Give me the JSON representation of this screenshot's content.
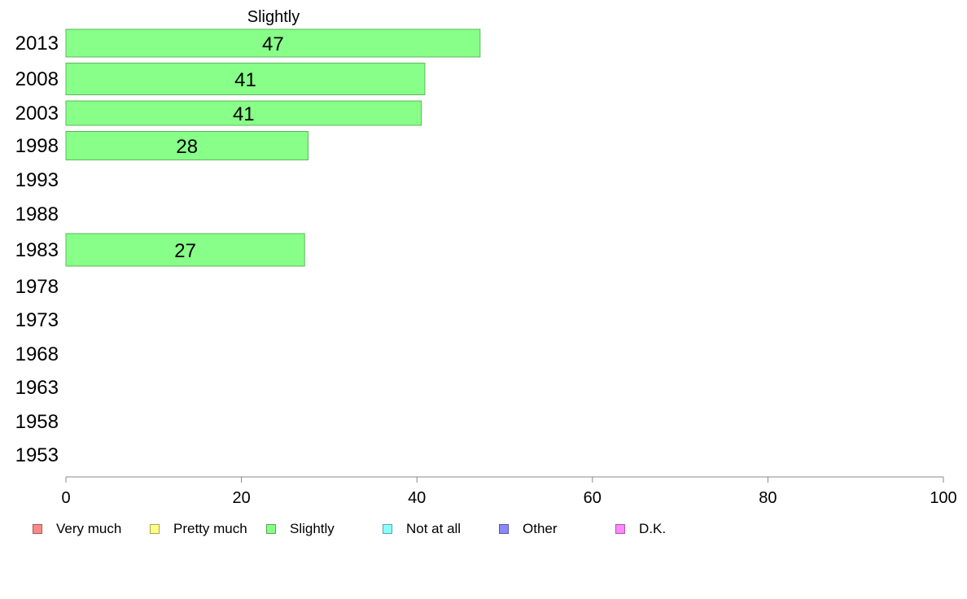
{
  "chart_data": {
    "type": "bar",
    "orientation": "horizontal",
    "title": "Slightly",
    "categories": [
      "2013",
      "2008",
      "2003",
      "1998",
      "1993",
      "1988",
      "1983",
      "1978",
      "1973",
      "1968",
      "1963",
      "1958",
      "1953"
    ],
    "values": [
      47.2,
      40.9,
      40.5,
      27.6,
      null,
      null,
      27.2,
      null,
      null,
      null,
      null,
      null,
      null
    ],
    "value_labels": [
      "47",
      "41",
      "41",
      "28",
      "",
      "",
      "27",
      "",
      "",
      "",
      "",
      "",
      ""
    ],
    "xlim": [
      0,
      100
    ],
    "xticks": [
      0,
      20,
      40,
      60,
      80,
      100
    ],
    "xtick_labels": [
      "0",
      "20",
      "40",
      "60",
      "80",
      "100"
    ],
    "grid": false,
    "bar_color": "#88ff88",
    "legend": {
      "placement": "bottom",
      "items": [
        {
          "label": "Very much",
          "color": "#ff8888"
        },
        {
          "label": "Pretty much",
          "color": "#ffff88"
        },
        {
          "label": "Slightly",
          "color": "#88ff88"
        },
        {
          "label": "Not at all",
          "color": "#88ffff"
        },
        {
          "label": "Other",
          "color": "#8888ff"
        },
        {
          "label": "D.K.",
          "color": "#ff88ff"
        }
      ]
    }
  }
}
